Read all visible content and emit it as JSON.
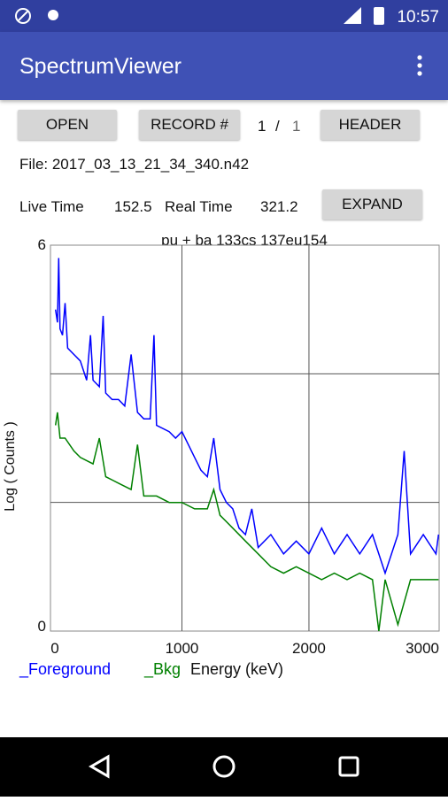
{
  "status_bar": {
    "time": "10:57"
  },
  "app_bar": {
    "title": "SpectrumViewer"
  },
  "controls": {
    "open": "OPEN",
    "record": "RECORD #",
    "record_index": "1",
    "record_sep": "/",
    "record_total": "1",
    "header": "HEADER",
    "file": "File: 2017_03_13_21_34_340.n42",
    "live_time_label": "Live Time",
    "live_time": "152.5",
    "real_time_label": "Real Time",
    "real_time": "321.2",
    "expand": "EXPAND"
  },
  "chart_data": {
    "type": "line",
    "title": "pu + ba 133cs 137eu154",
    "x_label": "Energy (keV)",
    "y_label": "Log ( Counts )",
    "xlim": [
      -35,
      3025
    ],
    "ylim": [
      0,
      6
    ],
    "xticks": [
      0,
      1000,
      2000,
      3000
    ],
    "yticks": [
      0,
      6
    ],
    "ygrid": [
      2,
      4
    ],
    "series": [
      {
        "name": "_Foreground",
        "color": "#0000ff",
        "x": [
          5,
          20,
          30,
          40,
          60,
          80,
          100,
          150,
          200,
          250,
          280,
          300,
          350,
          380,
          400,
          450,
          500,
          550,
          600,
          650,
          700,
          750,
          780,
          800,
          900,
          950,
          1000,
          1050,
          1100,
          1150,
          1200,
          1250,
          1300,
          1350,
          1400,
          1450,
          1500,
          1550,
          1600,
          1700,
          1800,
          1900,
          2000,
          2100,
          2200,
          2300,
          2400,
          2500,
          2600,
          2700,
          2750,
          2800,
          2900,
          3000,
          3020
        ],
        "values": [
          5.0,
          4.8,
          5.8,
          4.7,
          4.6,
          5.1,
          4.4,
          4.3,
          4.2,
          3.9,
          4.6,
          3.9,
          3.8,
          4.9,
          3.7,
          3.6,
          3.6,
          3.5,
          4.3,
          3.4,
          3.3,
          3.3,
          4.6,
          3.2,
          3.1,
          3.0,
          3.1,
          2.9,
          2.7,
          2.5,
          2.4,
          3.0,
          2.2,
          2.0,
          1.9,
          1.6,
          1.5,
          1.9,
          1.3,
          1.5,
          1.2,
          1.4,
          1.2,
          1.6,
          1.2,
          1.5,
          1.2,
          1.5,
          0.9,
          1.5,
          2.8,
          1.2,
          1.5,
          1.2,
          1.5
        ]
      },
      {
        "name": "_Bkg",
        "color": "#008000",
        "x": [
          5,
          20,
          40,
          80,
          150,
          200,
          300,
          350,
          400,
          500,
          600,
          650,
          700,
          800,
          900,
          1000,
          1100,
          1200,
          1250,
          1300,
          1400,
          1500,
          1600,
          1700,
          1800,
          1900,
          2000,
          2100,
          2200,
          2300,
          2400,
          2500,
          2550,
          2600,
          2700,
          2800,
          2900,
          3000,
          3020
        ],
        "values": [
          3.2,
          3.4,
          3.0,
          3.0,
          2.8,
          2.7,
          2.6,
          3.0,
          2.4,
          2.3,
          2.2,
          2.9,
          2.1,
          2.1,
          2.0,
          2.0,
          1.9,
          1.9,
          2.2,
          1.8,
          1.6,
          1.4,
          1.2,
          1.0,
          0.9,
          1.0,
          0.9,
          0.8,
          0.9,
          0.8,
          0.9,
          0.8,
          0.0,
          0.8,
          0.1,
          0.8,
          0.8,
          0.8,
          0.8
        ]
      }
    ]
  }
}
